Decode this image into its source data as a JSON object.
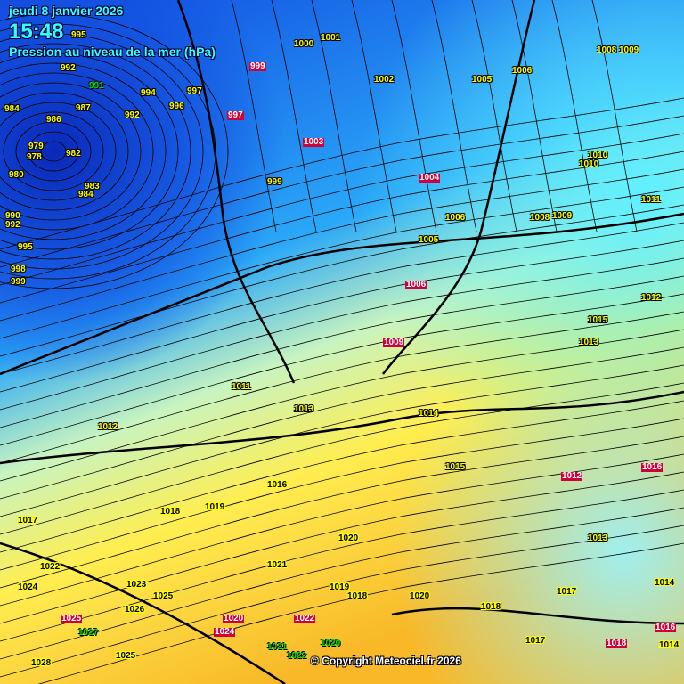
{
  "header": {
    "date": "jeudi 8 janvier 2026",
    "time": "15:48",
    "subtitle": "Pression au niveau de la mer (hPa)"
  },
  "copyright": "© Copyright Meteociel.fr 2026",
  "colors": {
    "deep_low": "#0a2fc8",
    "ocean_blue": "#1e6ef0",
    "cyan": "#40d8ff",
    "pale": "#d8f8b0",
    "yellow": "#ffe840",
    "orange": "#f8b020",
    "isobar": "#000000",
    "label_red": "#d0003a"
  },
  "stations": [
    {
      "v": "995",
      "c": "y"
    },
    {
      "v": "992",
      "c": "y"
    },
    {
      "v": "991",
      "c": "g"
    },
    {
      "v": "984",
      "c": "y"
    },
    {
      "v": "986",
      "c": "y"
    },
    {
      "v": "987",
      "c": "y"
    },
    {
      "v": "979",
      "c": "y"
    },
    {
      "v": "978",
      "c": "y"
    },
    {
      "v": "982",
      "c": "y"
    },
    {
      "v": "980",
      "c": "y"
    },
    {
      "v": "983",
      "c": "y"
    },
    {
      "v": "984",
      "c": "y"
    },
    {
      "v": "990",
      "c": "y"
    },
    {
      "v": "992",
      "c": "y"
    },
    {
      "v": "995",
      "c": "y"
    },
    {
      "v": "998",
      "c": "y"
    },
    {
      "v": "999",
      "c": "y"
    },
    {
      "v": "992",
      "c": "y"
    },
    {
      "v": "994",
      "c": "y"
    },
    {
      "v": "996",
      "c": "y"
    },
    {
      "v": "997",
      "c": "y"
    },
    {
      "v": "999",
      "c": "y"
    },
    {
      "v": "1000",
      "c": "y"
    },
    {
      "v": "1001",
      "c": "y"
    },
    {
      "v": "1002",
      "c": "y"
    },
    {
      "v": "1005",
      "c": "y"
    },
    {
      "v": "1006",
      "c": "y"
    },
    {
      "v": "1008",
      "c": "y"
    },
    {
      "v": "1009",
      "c": "y"
    },
    {
      "v": "1010",
      "c": "y"
    },
    {
      "v": "1003",
      "c": "r"
    },
    {
      "v": "1004",
      "c": "r"
    },
    {
      "v": "999",
      "c": "r"
    },
    {
      "v": "997",
      "c": "r"
    },
    {
      "v": "1006",
      "c": "r"
    },
    {
      "v": "1009",
      "c": "r"
    },
    {
      "v": "1012",
      "c": "y"
    },
    {
      "v": "1011",
      "c": "y"
    },
    {
      "v": "1013",
      "c": "y"
    },
    {
      "v": "1014",
      "c": "y"
    },
    {
      "v": "1015",
      "c": "y"
    },
    {
      "v": "1016",
      "c": "k"
    },
    {
      "v": "1017",
      "c": "k"
    },
    {
      "v": "1018",
      "c": "k"
    },
    {
      "v": "1019",
      "c": "k"
    },
    {
      "v": "1020",
      "c": "k"
    },
    {
      "v": "1021",
      "c": "k"
    },
    {
      "v": "1022",
      "c": "k"
    },
    {
      "v": "1023",
      "c": "k"
    },
    {
      "v": "1024",
      "c": "k"
    },
    {
      "v": "1025",
      "c": "k"
    },
    {
      "v": "1026",
      "c": "k"
    },
    {
      "v": "1028",
      "c": "k"
    },
    {
      "v": "1027",
      "c": "g"
    },
    {
      "v": "1020",
      "c": "k"
    },
    {
      "v": "1018",
      "c": "k"
    },
    {
      "v": "1017",
      "c": "k"
    },
    {
      "v": "1014",
      "c": "k"
    },
    {
      "v": "1013",
      "c": "y"
    },
    {
      "v": "1012",
      "c": "r"
    },
    {
      "v": "1008",
      "c": "y"
    },
    {
      "v": "1009",
      "c": "y"
    },
    {
      "v": "1010",
      "c": "y"
    },
    {
      "v": "1011",
      "c": "y"
    },
    {
      "v": "1006",
      "c": "y"
    },
    {
      "v": "1005",
      "c": "y"
    },
    {
      "v": "1012",
      "c": "y"
    },
    {
      "v": "1013",
      "c": "y"
    },
    {
      "v": "1015",
      "c": "y"
    },
    {
      "v": "1016",
      "c": "r"
    },
    {
      "v": "1018",
      "c": "r"
    },
    {
      "v": "1020",
      "c": "r"
    },
    {
      "v": "1022",
      "c": "r"
    },
    {
      "v": "1024",
      "c": "r"
    },
    {
      "v": "1025",
      "c": "r"
    },
    {
      "v": "1020",
      "c": "g"
    },
    {
      "v": "1022",
      "c": "g"
    },
    {
      "v": "1021",
      "c": "g"
    },
    {
      "v": "1019",
      "c": "k"
    },
    {
      "v": "1018",
      "c": "k"
    },
    {
      "v": "1025",
      "c": "k"
    },
    {
      "v": "1017",
      "c": "k"
    },
    {
      "v": "1014",
      "c": "k"
    },
    {
      "v": "1016",
      "c": "r"
    }
  ]
}
